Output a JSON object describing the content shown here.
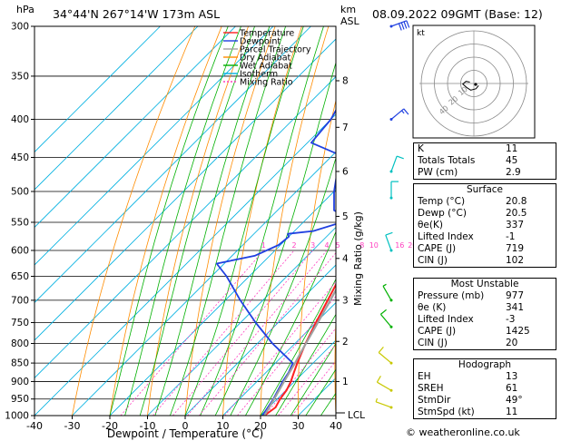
{
  "header": {
    "pressure_unit": "hPa",
    "location": "34°44'N  267°14'W  173m  ASL",
    "height_unit": "km",
    "height_ref": "ASL",
    "datetime": "08.09.2022  09GMT  (Base: 12)"
  },
  "chart_data": {
    "type": "skew-t",
    "xlabel": "Dewpoint / Temperature (°C)",
    "ylabel": "Mixing Ratio (g/kg)",
    "x_ticks": [
      -40,
      -30,
      -20,
      -10,
      0,
      10,
      20,
      30,
      40
    ],
    "xlim": [
      -40,
      40
    ],
    "pressure_levels": [
      300,
      350,
      400,
      450,
      500,
      550,
      600,
      650,
      700,
      750,
      800,
      850,
      900,
      950,
      1000
    ],
    "pressure_range": [
      300,
      1000
    ],
    "km_ticks": [
      {
        "km": "8",
        "p": 355
      },
      {
        "km": "7",
        "p": 410
      },
      {
        "km": "6",
        "p": 470
      },
      {
        "km": "5",
        "p": 540
      },
      {
        "km": "4",
        "p": 615
      },
      {
        "km": "3",
        "p": 700
      },
      {
        "km": "2",
        "p": 795
      },
      {
        "km": "1",
        "p": 900
      }
    ],
    "lcl_label": "LCL",
    "mixing_ratio_labels": [
      "1",
      "2",
      "3",
      "4",
      "5",
      "8",
      "10",
      "16",
      "20",
      "25"
    ],
    "legend": {
      "items": [
        {
          "label": "Temperature",
          "color": "#ff2020",
          "dash": ""
        },
        {
          "label": "Dewpoint",
          "color": "#2040e0",
          "dash": ""
        },
        {
          "label": "Parcel Trajectory",
          "color": "#a0a0a0",
          "dash": ""
        },
        {
          "label": "Dry Adiabat",
          "color": "#ff8c00",
          "dash": ""
        },
        {
          "label": "Wet Adiabat",
          "color": "#00b000",
          "dash": ""
        },
        {
          "label": "Isotherm",
          "color": "#00b0e0",
          "dash": ""
        },
        {
          "label": "Mixing Ratio",
          "color": "#ff40c0",
          "dash": "2,2"
        }
      ]
    },
    "series": [
      {
        "name": "Temperature",
        "color": "#ff2020",
        "points": [
          [
            1000,
            21.0
          ],
          [
            975,
            21.8
          ],
          [
            950,
            20.8
          ],
          [
            925,
            20.2
          ],
          [
            900,
            19.0
          ],
          [
            875,
            17.4
          ],
          [
            850,
            15.8
          ],
          [
            800,
            12.8
          ],
          [
            750,
            10.0
          ],
          [
            700,
            7.2
          ],
          [
            650,
            4.2
          ],
          [
            600,
            0.6
          ],
          [
            550,
            -3.8
          ],
          [
            500,
            -8.0
          ],
          [
            450,
            -13.4
          ],
          [
            400,
            -19.0
          ],
          [
            350,
            -25.8
          ],
          [
            300,
            -33.0
          ]
        ]
      },
      {
        "name": "Dewpoint",
        "color": "#2040e0",
        "points": [
          [
            1000,
            20.5
          ],
          [
            950,
            19.0
          ],
          [
            900,
            16.8
          ],
          [
            875,
            16.0
          ],
          [
            850,
            14.6
          ],
          [
            800,
            4.0
          ],
          [
            750,
            -6.0
          ],
          [
            700,
            -16.0
          ],
          [
            650,
            -26.0
          ],
          [
            625,
            -32.0
          ],
          [
            610,
            -24.0
          ],
          [
            590,
            -20.5
          ],
          [
            575,
            -20.0
          ],
          [
            570,
            -21.0
          ],
          [
            565,
            -15.0
          ],
          [
            545,
            -8.0
          ],
          [
            530,
            -15.0
          ],
          [
            500,
            -20.0
          ],
          [
            460,
            -26.0
          ],
          [
            450,
            -26.0
          ],
          [
            430,
            -39.0
          ],
          [
            400,
            -40.0
          ],
          [
            350,
            -45.0
          ],
          [
            325,
            -50.0
          ],
          [
            300,
            -47.0
          ]
        ]
      },
      {
        "name": "Parcel Trajectory",
        "color": "#a0a0a0",
        "points": [
          [
            1000,
            21.0
          ],
          [
            950,
            19.2
          ],
          [
            900,
            17.2
          ],
          [
            850,
            15.2
          ],
          [
            800,
            12.9
          ],
          [
            750,
            10.5
          ],
          [
            700,
            7.9
          ],
          [
            650,
            5.0
          ],
          [
            600,
            1.8
          ],
          [
            550,
            -1.8
          ],
          [
            500,
            -5.8
          ],
          [
            450,
            -10.5
          ],
          [
            400,
            -16.0
          ],
          [
            350,
            -22.5
          ],
          [
            300,
            -30.5
          ]
        ]
      }
    ],
    "wind_barbs": [
      {
        "p": 300,
        "dir": 250,
        "kt": 40
      },
      {
        "p": 400,
        "dir": 230,
        "kt": 15
      },
      {
        "p": 470,
        "dir": 200,
        "kt": 10
      },
      {
        "p": 510,
        "dir": 180,
        "kt": 10
      },
      {
        "p": 600,
        "dir": 160,
        "kt": 10
      },
      {
        "p": 700,
        "dir": 150,
        "kt": 5
      },
      {
        "p": 760,
        "dir": 140,
        "kt": 10
      },
      {
        "p": 850,
        "dir": 130,
        "kt": 10
      },
      {
        "p": 925,
        "dir": 120,
        "kt": 10
      },
      {
        "p": 975,
        "dir": 110,
        "kt": 5
      }
    ],
    "hodograph": {
      "unit_label": "kt",
      "ring_labels": [
        "10",
        "20",
        "40"
      ],
      "ring_values": [
        10,
        20,
        30,
        40
      ],
      "trace": [
        [
          -1.5,
          0.5
        ],
        [
          -3.0,
          0.8
        ],
        [
          -4.2,
          -0.2
        ],
        [
          -2.8,
          -1.5
        ],
        [
          -1.2,
          -2.5
        ],
        [
          0.8,
          -2.0
        ],
        [
          1.8,
          -0.8
        ]
      ]
    }
  },
  "indices": [
    {
      "label": "K",
      "value": "11"
    },
    {
      "label": "Totals Totals",
      "value": "45"
    },
    {
      "label": "PW (cm)",
      "value": "2.9"
    }
  ],
  "surface": {
    "title": "Surface",
    "rows": [
      {
        "label": "Temp (°C)",
        "value": "20.8"
      },
      {
        "label": "Dewp (°C)",
        "value": "20.5"
      },
      {
        "label": "θe(K)",
        "value": "337"
      },
      {
        "label": "Lifted Index",
        "value": "-1"
      },
      {
        "label": "CAPE (J)",
        "value": "719"
      },
      {
        "label": "CIN (J)",
        "value": "102"
      }
    ]
  },
  "most_unstable": {
    "title": "Most Unstable",
    "rows": [
      {
        "label": "Pressure (mb)",
        "value": "977"
      },
      {
        "label": "θe (K)",
        "value": "341"
      },
      {
        "label": "Lifted Index",
        "value": "-3"
      },
      {
        "label": "CAPE (J)",
        "value": "1425"
      },
      {
        "label": "CIN (J)",
        "value": "20"
      }
    ]
  },
  "hodograph_table": {
    "title": "Hodograph",
    "rows": [
      {
        "label": "EH",
        "value": "13"
      },
      {
        "label": "SREH",
        "value": "61"
      },
      {
        "label": "StmDir",
        "value": "49°"
      },
      {
        "label": "StmSpd (kt)",
        "value": "11"
      }
    ]
  },
  "credit": "© weatheronline.co.uk"
}
